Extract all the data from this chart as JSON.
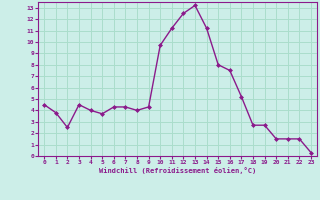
{
  "x": [
    0,
    1,
    2,
    3,
    4,
    5,
    6,
    7,
    8,
    9,
    10,
    11,
    12,
    13,
    14,
    15,
    16,
    17,
    18,
    19,
    20,
    21,
    22,
    23
  ],
  "y": [
    4.5,
    3.8,
    2.5,
    4.5,
    4.0,
    3.7,
    4.3,
    4.3,
    4.0,
    4.3,
    9.7,
    11.2,
    12.5,
    13.2,
    11.2,
    8.0,
    7.5,
    5.2,
    2.7,
    2.7,
    1.5,
    1.5,
    1.5,
    0.3
  ],
  "line_color": "#8b1a8b",
  "marker": "D",
  "marker_size": 2.0,
  "line_width": 1.0,
  "xlabel": "Windchill (Refroidissement éolien,°C)",
  "xlim": [
    -0.5,
    23.5
  ],
  "ylim": [
    0,
    13.5
  ],
  "yticks": [
    0,
    1,
    2,
    3,
    4,
    5,
    6,
    7,
    8,
    9,
    10,
    11,
    12,
    13
  ],
  "xticks": [
    0,
    1,
    2,
    3,
    4,
    5,
    6,
    7,
    8,
    9,
    10,
    11,
    12,
    13,
    14,
    15,
    16,
    17,
    18,
    19,
    20,
    21,
    22,
    23
  ],
  "background_color": "#cceee8",
  "grid_color": "#aaddcc",
  "spine_color": "#8b1a8b",
  "label_color": "#8b1a8b",
  "font_family": "monospace",
  "tick_fontsize": 4.5,
  "xlabel_fontsize": 5.0
}
